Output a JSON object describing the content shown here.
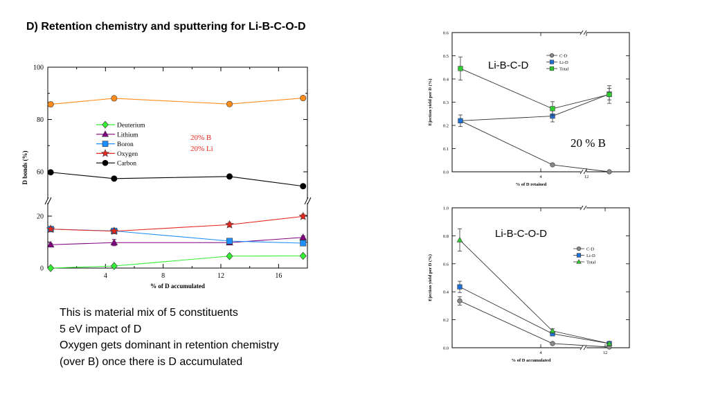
{
  "slide": {
    "title": "D) Retention chemistry and sputtering for Li-B-C-O-D",
    "notes": [
      "This is material mix of 5 constituents",
      "5 eV impact of D",
      "Oxygen gets dominant in retention chemistry",
      "(over B) once there is  D accumulated"
    ]
  },
  "chart_data": [
    {
      "type": "line",
      "xlabel": "% of D accumulated",
      "ylabel": "D bonds (%)",
      "xticks": [
        "4",
        "8",
        "12",
        "16"
      ],
      "yticks_upper": [
        "60",
        "80",
        "100"
      ],
      "yticks_lower": [
        "0",
        "20"
      ],
      "annotation": [
        "20% B",
        "20% Li"
      ],
      "annotation_color": "#e8261e",
      "legend_placement": "upper-left-inside",
      "axis_break": true,
      "ylim_lower": [
        0,
        20
      ],
      "ylim_upper": [
        60,
        100
      ],
      "xlim": [
        0,
        18
      ],
      "series": [
        {
          "name": "Deuterium",
          "color": "#33ee33",
          "marker": "diamond",
          "legend": true,
          "x": [
            0.2,
            4.6,
            12.6,
            17.7
          ],
          "y": [
            0.0,
            0.8,
            4.6,
            4.7
          ],
          "err": [
            0,
            0.3,
            0.6,
            0.5
          ]
        },
        {
          "name": "Lithium",
          "color": "#800080",
          "marker": "triangle",
          "legend": true,
          "x": [
            0.2,
            4.6,
            12.6,
            17.7
          ],
          "y": [
            9.0,
            9.8,
            9.8,
            11.8
          ],
          "err": [
            0.5,
            1.2,
            0.7,
            0.6
          ]
        },
        {
          "name": "Boron",
          "color": "#1e8fff",
          "marker": "square",
          "legend": true,
          "x": [
            0.2,
            4.6,
            12.6,
            17.7
          ],
          "y": [
            15.0,
            14.3,
            10.4,
            9.6
          ],
          "err": [
            0.5,
            0.6,
            0.5,
            0.5
          ]
        },
        {
          "name": "Oxygen",
          "color": "#e8261e",
          "marker": "star",
          "legend": true,
          "x": [
            0.2,
            4.6,
            12.6,
            17.7
          ],
          "y": [
            15.0,
            14.2,
            16.7,
            19.9
          ],
          "err": [
            0.5,
            0.6,
            0.9,
            0.9
          ]
        },
        {
          "name": "Carbon",
          "color": "#000000",
          "marker": "circle",
          "legend": true,
          "x": [
            0.2,
            4.6,
            12.6,
            17.7
          ],
          "y": [
            59.8,
            57.4,
            58.2,
            54.5
          ],
          "err": [
            0.6,
            0.7,
            0.7,
            0.7
          ]
        },
        {
          "name": "",
          "color": "#ff8c1a",
          "marker": "circle",
          "legend": false,
          "x": [
            0.2,
            4.6,
            12.6,
            17.7
          ],
          "y": [
            85.8,
            88.1,
            85.9,
            88.2
          ],
          "err": [
            0.9,
            0.8,
            0.8,
            0.8
          ]
        }
      ]
    },
    {
      "type": "line",
      "label": "Li-B-C-D",
      "annotation": "20 % B",
      "xlabel": "% of D retained",
      "ylabel": "Ejection yield per D (%)",
      "xticks": [
        "4",
        "12"
      ],
      "yticks": [
        "0.0",
        "0.1",
        "0.2",
        "0.3",
        "0.4",
        "0.5",
        "0.6"
      ],
      "ylim": [
        0,
        0.6
      ],
      "axis_break": true,
      "legend_placement": "top-right",
      "series": [
        {
          "name": "C-D",
          "color": "#888888",
          "marker": "circle",
          "y": [
            0.22,
            0.03,
            0.0
          ],
          "err": [
            0,
            0,
            0
          ]
        },
        {
          "name": "Li-D",
          "color": "#1e6fd6",
          "marker": "square",
          "y": [
            0.22,
            0.24,
            0.335
          ],
          "err": [
            0.025,
            0.025,
            0.025
          ]
        },
        {
          "name": "Total",
          "color": "#2ecc2e",
          "marker": "square",
          "y": [
            0.445,
            0.272,
            0.333
          ],
          "err": [
            0.05,
            0.03,
            0.038
          ]
        }
      ]
    },
    {
      "type": "line",
      "label": "Li-B-C-O-D",
      "xlabel": "% of D accumulated",
      "ylabel": "Ejection yield per D (%)",
      "xticks": [
        "4",
        "12"
      ],
      "yticks": [
        "0.0",
        "0.2",
        "0.4",
        "0.6",
        "0.8",
        "1.0"
      ],
      "ylim": [
        0,
        1.0
      ],
      "axis_break": true,
      "legend_placement": "right",
      "series": [
        {
          "name": "C-D",
          "color": "#888888",
          "marker": "circle",
          "y": [
            0.335,
            0.03,
            0.005
          ],
          "err": [
            0.03,
            0,
            0
          ]
        },
        {
          "name": "Li-D",
          "color": "#1e6fd6",
          "marker": "square",
          "y": [
            0.435,
            0.1,
            0.03
          ],
          "err": [
            0.04,
            0.01,
            0
          ]
        },
        {
          "name": "Total",
          "color": "#2ecc2e",
          "marker": "triangle",
          "y": [
            0.77,
            0.12,
            0.03
          ],
          "err": [
            0.08,
            0.015,
            0
          ]
        }
      ]
    }
  ]
}
